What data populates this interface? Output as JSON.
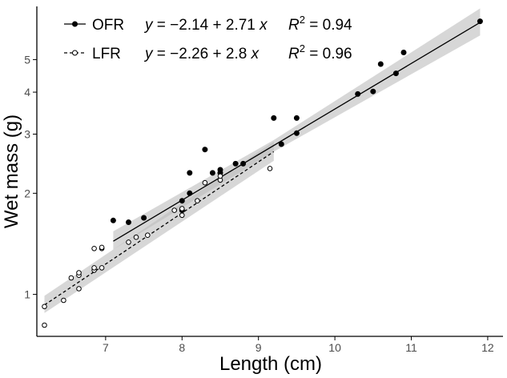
{
  "chart_data": {
    "type": "scatter",
    "xlabel": "Length (cm)",
    "ylabel": "Wet mass (g)",
    "xlim": [
      6.1,
      12.2
    ],
    "ylim": [
      0.75,
      7.2
    ],
    "y_scale": "log",
    "x_ticks": [
      7,
      8,
      9,
      10,
      11,
      12
    ],
    "y_ticks": [
      1,
      2,
      3,
      4,
      5
    ],
    "grid": false,
    "legend_placement": "top-left",
    "series": [
      {
        "name": "OFR",
        "marker": "filled-circle",
        "line": "solid",
        "color": "#000000",
        "equation_y": "y",
        "equation_eq": " = −2.14 + 2.71 ",
        "equation_x": "x",
        "r2_label": "R",
        "r2_sup": "2",
        "r2_value": " = 0.94",
        "x": [
          7.1,
          7.3,
          7.5,
          8.0,
          8.0,
          8.1,
          8.1,
          8.3,
          8.4,
          8.5,
          8.5,
          8.7,
          8.8,
          9.2,
          9.3,
          9.5,
          9.5,
          10.3,
          10.5,
          10.6,
          10.8,
          10.9,
          11.9
        ],
        "y": [
          1.66,
          1.64,
          1.69,
          1.9,
          1.78,
          2.0,
          2.3,
          2.7,
          2.3,
          2.3,
          2.35,
          2.45,
          2.45,
          3.35,
          2.8,
          3.35,
          3.02,
          3.95,
          4.02,
          4.85,
          4.55,
          5.25,
          6.5
        ],
        "fit_x": [
          7.1,
          11.9
        ],
        "fit_y": [
          1.44,
          6.45
        ],
        "ci_x": [
          7.1,
          9.2,
          11.9
        ],
        "ci_lower": [
          1.36,
          2.66,
          5.9
        ],
        "ci_upper": [
          1.54,
          2.88,
          7.1
        ]
      },
      {
        "name": "LFR",
        "marker": "open-circle",
        "line": "dashed",
        "color": "#000000",
        "equation_y": "y",
        "equation_eq": " = −2.26 + 2.8 ",
        "equation_x": "x",
        "r2_label": "R",
        "r2_sup": "2",
        "r2_value": " = 0.96",
        "x": [
          6.2,
          6.2,
          6.45,
          6.55,
          6.65,
          6.65,
          6.65,
          6.85,
          6.85,
          6.85,
          6.95,
          6.95,
          6.95,
          7.3,
          7.4,
          7.55,
          7.9,
          8.0,
          8.0,
          8.2,
          8.3,
          8.5,
          8.5,
          9.15
        ],
        "y": [
          0.81,
          0.92,
          0.96,
          1.12,
          1.04,
          1.14,
          1.16,
          1.18,
          1.2,
          1.37,
          1.37,
          1.38,
          1.2,
          1.43,
          1.48,
          1.5,
          1.78,
          1.8,
          1.72,
          1.9,
          2.15,
          2.19,
          2.25,
          2.37
        ],
        "fit_x": [
          6.2,
          9.2
        ],
        "fit_y": [
          0.93,
          2.66
        ],
        "ci_x": [
          6.2,
          9.2
        ],
        "ci_lower": [
          0.88,
          2.5
        ],
        "ci_upper": [
          0.99,
          2.85
        ]
      }
    ]
  }
}
